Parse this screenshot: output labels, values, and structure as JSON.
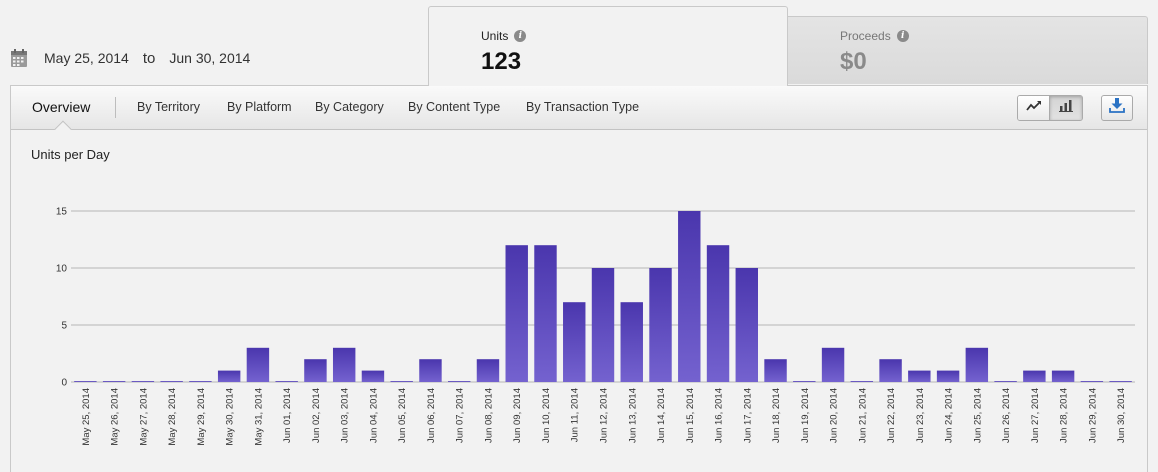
{
  "date_range": {
    "icon": "calendar-icon",
    "start": "May 25, 2014",
    "separator": "to",
    "end": "Jun 30, 2014"
  },
  "metric_tabs": [
    {
      "label": "Units",
      "value": "123",
      "active": true,
      "info_icon": "info-icon"
    },
    {
      "label": "Proceeds",
      "value": "$0",
      "active": false,
      "info_icon": "info-icon"
    }
  ],
  "toolbar": {
    "nav": [
      {
        "label": "Overview",
        "active": true
      },
      {
        "label": "By Territory"
      },
      {
        "label": "By Platform"
      },
      {
        "label": "By Category"
      },
      {
        "label": "By Content Type"
      },
      {
        "label": "By Transaction Type"
      }
    ],
    "view_toggle": {
      "line_icon": "line-chart-icon",
      "bar_icon": "bar-chart-icon",
      "selected": "bar"
    },
    "download_icon": "download-icon"
  },
  "chart": {
    "title": "Units per Day"
  },
  "chart_data": {
    "type": "bar",
    "title": "Units per Day",
    "xlabel": "",
    "ylabel": "",
    "ylim": [
      0,
      15
    ],
    "yticks": [
      0,
      5,
      10,
      15
    ],
    "grid": true,
    "bar_color": "#5b47b8",
    "categories": [
      "May 25, 2014",
      "May 26, 2014",
      "May 27, 2014",
      "May 28, 2014",
      "May 29, 2014",
      "May 30, 2014",
      "May 31, 2014",
      "Jun 01, 2014",
      "Jun 02, 2014",
      "Jun 03, 2014",
      "Jun 04, 2014",
      "Jun 05, 2014",
      "Jun 06, 2014",
      "Jun 07, 2014",
      "Jun 08, 2014",
      "Jun 09, 2014",
      "Jun 10, 2014",
      "Jun 11, 2014",
      "Jun 12, 2014",
      "Jun 13, 2014",
      "Jun 14, 2014",
      "Jun 15, 2014",
      "Jun 16, 2014",
      "Jun 17, 2014",
      "Jun 18, 2014",
      "Jun 19, 2014",
      "Jun 20, 2014",
      "Jun 21, 2014",
      "Jun 22, 2014",
      "Jun 23, 2014",
      "Jun 24, 2014",
      "Jun 25, 2014",
      "Jun 26, 2014",
      "Jun 27, 2014",
      "Jun 28, 2014",
      "Jun 29, 2014",
      "Jun 30, 2014"
    ],
    "values": [
      0,
      0,
      0,
      0,
      0,
      1,
      3,
      0,
      2,
      3,
      1,
      0,
      2,
      0,
      2,
      12,
      12,
      7,
      10,
      7,
      10,
      15,
      12,
      10,
      2,
      0,
      3,
      0,
      2,
      1,
      1,
      3,
      0,
      1,
      1,
      0,
      0
    ]
  }
}
